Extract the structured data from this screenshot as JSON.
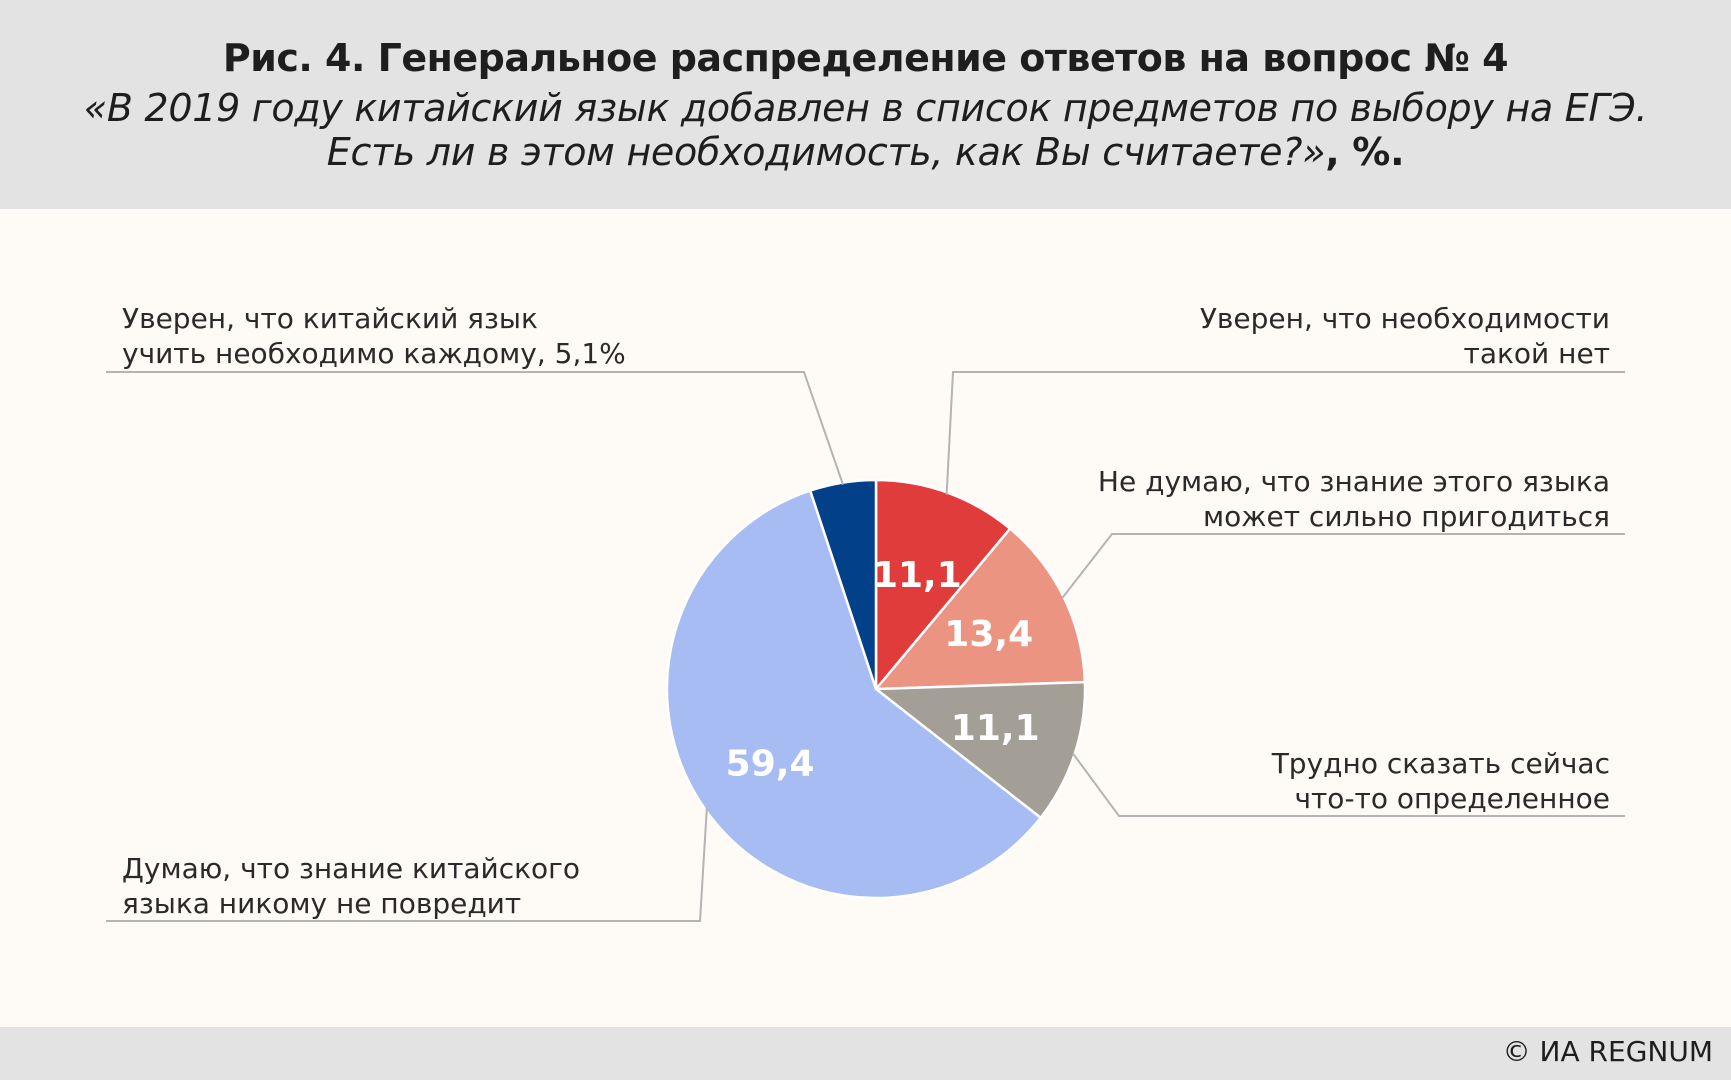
{
  "header": {
    "title": "Рис. 4. Генеральное распределение ответов на вопрос № 4",
    "subtitle_line1": "«В 2019 году китайский язык добавлен в список предметов по выбору на ЕГЭ.",
    "subtitle_line2": "Есть ли в этом необходимость, как Вы считаете?»",
    "subtitle_suffix": ", %."
  },
  "footer": {
    "copyright": "© ИА REGNUM"
  },
  "chart_data": {
    "type": "pie",
    "unit": "%",
    "slices": [
      {
        "label_lines": [
          "Уверен, что необходимости",
          "такой нет"
        ],
        "value": 11.1,
        "value_text": "11,1",
        "color": "#e03c3c"
      },
      {
        "label_lines": [
          "Не думаю, что знание этого языка",
          "может сильно пригодиться"
        ],
        "value": 13.4,
        "value_text": "13,4",
        "color": "#ec9482"
      },
      {
        "label_lines": [
          "Трудно сказать сейчас",
          "что-то определенное"
        ],
        "value": 11.1,
        "value_text": "11,1",
        "color": "#a39e96"
      },
      {
        "label_lines": [
          "Думаю, что знание китайского",
          "языка никому не повредит"
        ],
        "value": 59.4,
        "value_text": "59,4",
        "color": "#a6bcf2"
      },
      {
        "label_lines": [
          "Уверен, что китайский язык",
          "учить необходимо каждому, 5,1%"
        ],
        "value": 5.1,
        "value_text": "",
        "color": "#02418a"
      }
    ]
  }
}
